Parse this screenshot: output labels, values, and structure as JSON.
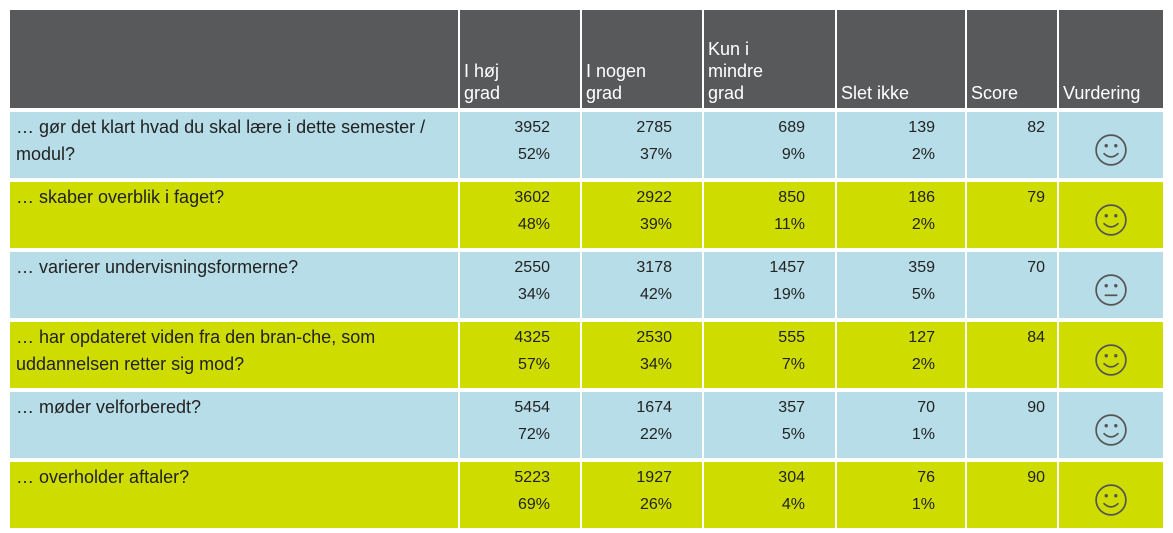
{
  "table": {
    "header": [
      [],
      [
        "I høj",
        "grad"
      ],
      [
        "I nogen",
        "grad"
      ],
      [
        "Kun i",
        "mindre",
        "grad"
      ],
      [
        "Slet ikke"
      ],
      [
        "Score"
      ],
      [
        "Vurdering"
      ]
    ],
    "rows": [
      [
        "… gør det klart hvad du skal lære i dette semester / modul?",
        3952,
        "52%",
        2785,
        "37%",
        689,
        "9%",
        139,
        "2%",
        82
      ],
      [
        "… skaber overblik i faget?",
        3602,
        "48%",
        2922,
        "39%",
        850,
        "11%",
        186,
        "2%",
        79
      ],
      [
        "… varierer undervisningsformerne?",
        2550,
        "34%",
        3178,
        "42%",
        1457,
        "19%",
        359,
        "5%",
        70
      ],
      [
        "… har opdateret viden fra den bran-che, som uddannelsen retter sig mod?",
        4325,
        "57%",
        2530,
        "34%",
        555,
        "7%",
        127,
        "2%",
        84
      ],
      [
        "… møder velforberedt?",
        5454,
        "72%",
        1674,
        "22%",
        357,
        "5%",
        70,
        "1%",
        90
      ],
      [
        "… overholder aftaler?",
        5223,
        "69%",
        1927,
        "26%",
        304,
        "4%",
        76,
        "1%",
        90
      ]
    ]
  }
}
